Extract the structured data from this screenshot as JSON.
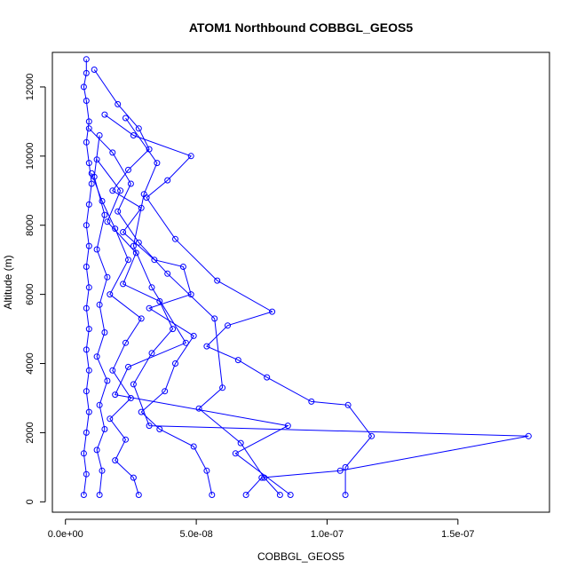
{
  "chart_data": {
    "type": "line",
    "title": "ATOM1 Northbound COBBGL_GEOS5",
    "xlabel": "COBBGL_GEOS5",
    "ylabel": "Altitude (m)",
    "xlim": [
      -5e-09,
      1.85e-07
    ],
    "ylim": [
      -300,
      13000
    ],
    "x_ticks": [
      0,
      5e-08,
      1e-07,
      1.5e-07
    ],
    "x_tick_labels": [
      "0.0e+00",
      "5.0e-08",
      "1.0e-07",
      "1.5e-07"
    ],
    "y_ticks": [
      0,
      2000,
      4000,
      6000,
      8000,
      10000,
      12000
    ],
    "y_tick_labels": [
      "0",
      "2000",
      "4000",
      "6000",
      "8000",
      "10000",
      "12000"
    ],
    "marker": "open-circle",
    "color": "#0000ff",
    "grid": false,
    "series": [
      {
        "points": [
          [
            8e-09,
            12800
          ],
          [
            8e-09,
            12400
          ],
          [
            7e-09,
            12000
          ],
          [
            8e-09,
            11600
          ],
          [
            9e-09,
            11000
          ],
          [
            8e-09,
            10400
          ],
          [
            9e-09,
            9800
          ],
          [
            1e-08,
            9200
          ],
          [
            9e-09,
            8600
          ],
          [
            8e-09,
            8000
          ],
          [
            9e-09,
            7400
          ],
          [
            8e-09,
            6800
          ],
          [
            9e-09,
            6200
          ],
          [
            8e-09,
            5600
          ],
          [
            9e-09,
            5000
          ],
          [
            8e-09,
            4400
          ],
          [
            9e-09,
            3800
          ],
          [
            8e-09,
            3200
          ],
          [
            9e-09,
            2600
          ],
          [
            8e-09,
            2000
          ],
          [
            7e-09,
            1400
          ],
          [
            8e-09,
            800
          ],
          [
            7e-09,
            200
          ]
        ]
      },
      {
        "points": [
          [
            1.1e-08,
            12500
          ],
          [
            2e-08,
            11500
          ],
          [
            2.8e-08,
            10800
          ],
          [
            3.2e-08,
            10200
          ],
          [
            2.4e-08,
            9600
          ],
          [
            1.8e-08,
            9000
          ],
          [
            2.9e-08,
            8500
          ],
          [
            2.2e-08,
            7800
          ],
          [
            3.4e-08,
            7000
          ],
          [
            4.5e-08,
            6800
          ],
          [
            4.8e-08,
            6000
          ],
          [
            3.2e-08,
            5600
          ],
          [
            4.9e-08,
            4800
          ],
          [
            4.2e-08,
            4000
          ],
          [
            3.8e-08,
            3200
          ],
          [
            2.9e-08,
            2600
          ],
          [
            3.6e-08,
            2100
          ],
          [
            4.9e-08,
            1600
          ],
          [
            5.4e-08,
            900
          ],
          [
            5.6e-08,
            200
          ]
        ]
      },
      {
        "points": [
          [
            1.5e-08,
            11200
          ],
          [
            2.6e-08,
            10600
          ],
          [
            4.8e-08,
            10000
          ],
          [
            3.9e-08,
            9300
          ],
          [
            3.1e-08,
            8800
          ],
          [
            4.2e-08,
            7600
          ],
          [
            5.8e-08,
            6400
          ],
          [
            7.9e-08,
            5500
          ],
          [
            6.2e-08,
            5100
          ],
          [
            5.4e-08,
            4500
          ],
          [
            6.6e-08,
            4100
          ],
          [
            7.7e-08,
            3600
          ],
          [
            9.4e-08,
            2900
          ],
          [
            1.08e-07,
            2800
          ],
          [
            1.17e-07,
            1900
          ],
          [
            1.07e-07,
            1000
          ],
          [
            1.07e-07,
            200
          ]
        ]
      },
      {
        "points": [
          [
            9e-09,
            10800
          ],
          [
            1.8e-08,
            10100
          ],
          [
            2.5e-08,
            9200
          ],
          [
            2e-08,
            8400
          ],
          [
            2.8e-08,
            7500
          ],
          [
            3.9e-08,
            6600
          ],
          [
            5.7e-08,
            5300
          ],
          [
            6e-08,
            3300
          ],
          [
            5.1e-08,
            2700
          ],
          [
            6.7e-08,
            1700
          ],
          [
            7.6e-08,
            700
          ],
          [
            8.2e-08,
            200
          ]
        ]
      },
      {
        "points": [
          [
            1.2e-08,
            9900
          ],
          [
            2.1e-08,
            9000
          ],
          [
            1.6e-08,
            8100
          ],
          [
            2.7e-08,
            7200
          ],
          [
            2.2e-08,
            6300
          ],
          [
            3.6e-08,
            5800
          ],
          [
            4.1e-08,
            5000
          ],
          [
            3.3e-08,
            4300
          ],
          [
            2.6e-08,
            3400
          ],
          [
            3.2e-08,
            2200
          ],
          [
            1.77e-07,
            1900
          ],
          [
            1.05e-07,
            900
          ],
          [
            7.5e-08,
            700
          ],
          [
            6.9e-08,
            200
          ]
        ]
      },
      {
        "points": [
          [
            1e-08,
            9500
          ],
          [
            1.4e-08,
            8700
          ],
          [
            1.9e-08,
            7900
          ],
          [
            2.4e-08,
            7000
          ],
          [
            1.7e-08,
            6000
          ],
          [
            2.9e-08,
            5300
          ],
          [
            2.3e-08,
            4600
          ],
          [
            1.8e-08,
            3800
          ],
          [
            2.5e-08,
            3000
          ],
          [
            1.7e-08,
            2400
          ],
          [
            2.3e-08,
            1800
          ],
          [
            1.9e-08,
            1200
          ],
          [
            2.6e-08,
            700
          ],
          [
            2.8e-08,
            200
          ]
        ]
      },
      {
        "points": [
          [
            1.3e-08,
            10600
          ],
          [
            1.1e-08,
            9400
          ],
          [
            1.5e-08,
            8300
          ],
          [
            1.2e-08,
            7300
          ],
          [
            1.6e-08,
            6500
          ],
          [
            1.3e-08,
            5700
          ],
          [
            1.5e-08,
            4900
          ],
          [
            1.2e-08,
            4200
          ],
          [
            1.6e-08,
            3500
          ],
          [
            1.3e-08,
            2800
          ],
          [
            1.5e-08,
            2100
          ],
          [
            1.2e-08,
            1500
          ],
          [
            1.4e-08,
            900
          ],
          [
            1.3e-08,
            200
          ]
        ]
      },
      {
        "points": [
          [
            2.3e-08,
            11100
          ],
          [
            3.5e-08,
            9800
          ],
          [
            3e-08,
            8900
          ],
          [
            2.6e-08,
            7400
          ],
          [
            3.3e-08,
            6200
          ],
          [
            4.6e-08,
            4600
          ],
          [
            2.4e-08,
            3900
          ],
          [
            1.9e-08,
            3100
          ],
          [
            8.5e-08,
            2200
          ],
          [
            6.5e-08,
            1400
          ],
          [
            8.6e-08,
            200
          ]
        ]
      }
    ]
  }
}
